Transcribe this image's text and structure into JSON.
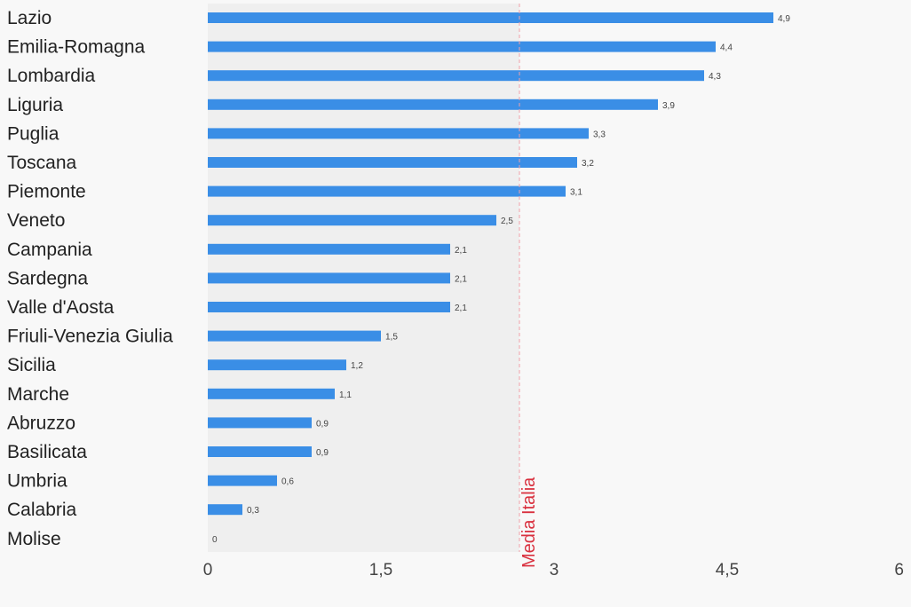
{
  "chart_data": {
    "type": "bar",
    "orientation": "horizontal",
    "categories": [
      "Lazio",
      "Emilia-Romagna",
      "Lombardia",
      "Liguria",
      "Puglia",
      "Toscana",
      "Piemonte",
      "Veneto",
      "Campania",
      "Sardegna",
      "Valle d'Aosta",
      "Friuli-Venezia Giulia",
      "Sicilia",
      "Marche",
      "Abruzzo",
      "Basilicata",
      "Umbria",
      "Calabria",
      "Molise"
    ],
    "values": [
      4.9,
      4.4,
      4.3,
      3.9,
      3.3,
      3.2,
      3.1,
      2.5,
      2.1,
      2.1,
      2.1,
      1.5,
      1.2,
      1.1,
      0.9,
      0.9,
      0.6,
      0.3,
      0
    ],
    "value_labels": [
      "4,9",
      "4,4",
      "4,3",
      "3,9",
      "3,3",
      "3,2",
      "3,1",
      "2,5",
      "2,1",
      "2,1",
      "2,1",
      "1,5",
      "1,2",
      "1,1",
      "0,9",
      "0,9",
      "0,6",
      "0,3",
      "0"
    ],
    "xlim": [
      0,
      6
    ],
    "x_ticks": [
      0,
      1.5,
      3,
      4.5,
      6
    ],
    "x_tick_labels": [
      "0",
      "1,5",
      "3",
      "4,5",
      "6"
    ],
    "reference_line": {
      "value": 2.7,
      "label": "Media Italia",
      "color": "#d9303e"
    },
    "bar_color": "#3a8ee6",
    "shaded_region_color": "#efefef",
    "grid": false,
    "legend": "none"
  }
}
